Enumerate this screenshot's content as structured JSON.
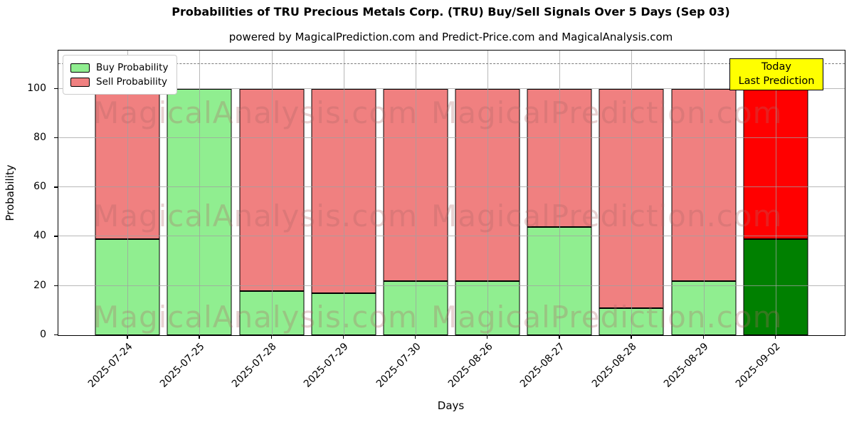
{
  "chart_data": {
    "type": "bar",
    "stacked": true,
    "title": "Probabilities of TRU Precious Metals Corp. (TRU) Buy/Sell Signals Over 5 Days (Sep 03)",
    "subtitle": "powered by MagicalPrediction.com and Predict-Price.com and MagicalAnalysis.com",
    "xlabel": "Days",
    "ylabel": "Probability",
    "categories": [
      "2025-07-24",
      "2025-07-25",
      "2025-07-28",
      "2025-07-29",
      "2025-07-30",
      "2025-08-26",
      "2025-08-27",
      "2025-08-28",
      "2025-08-29",
      "2025-09-02"
    ],
    "series": [
      {
        "name": "Buy Probability",
        "color": "#90ee90",
        "final_bar_color": "#008000",
        "values": [
          39,
          100,
          18,
          17,
          22,
          22,
          44,
          11,
          22,
          39
        ]
      },
      {
        "name": "Sell Probability",
        "color": "#f08080",
        "final_bar_color": "#ff0000",
        "values": [
          61,
          0,
          82,
          83,
          78,
          78,
          56,
          89,
          78,
          61
        ]
      }
    ],
    "ylim": [
      0,
      115.5
    ],
    "yticks": [
      0,
      20,
      40,
      60,
      80,
      100
    ],
    "grid": true,
    "legend_position": "upper left",
    "reference_line": {
      "y": 110,
      "style": "dashed",
      "color": "#7a7a7a"
    },
    "annotation": {
      "lines": [
        "Today",
        "Last Prediction"
      ],
      "bg": "#ffff00"
    },
    "watermarks": {
      "left_text": "MagicalAnalysis.com",
      "right_text": "MagicalPrediction.com"
    },
    "bar_edge_color": "#000000"
  }
}
